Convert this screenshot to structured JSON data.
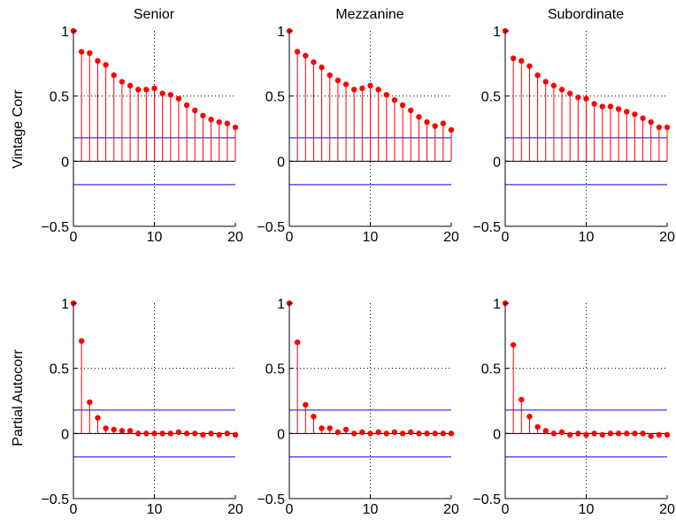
{
  "figure": {
    "column_titles": [
      "Senior",
      "Mezzanine",
      "Subordinate"
    ],
    "row_labels": [
      "Vintage Corr",
      "Partial Autocorr"
    ]
  },
  "colors": {
    "stem": "#ff0000",
    "bound": "#0000ff",
    "axis": "#000000",
    "grid": "#000000"
  },
  "chart_data": [
    {
      "type": "stem",
      "title": "Senior",
      "ylabel": "Vintage Corr",
      "xlim": [
        0,
        20
      ],
      "ylim": [
        -0.5,
        1
      ],
      "xticks": [
        "0",
        "10",
        "20"
      ],
      "yticks": [
        "−0.5",
        "0",
        "0.5",
        "1"
      ],
      "grid": true,
      "confidence_bounds": [
        0.18,
        -0.18
      ],
      "x": [
        0,
        1,
        2,
        3,
        4,
        5,
        6,
        7,
        8,
        9,
        10,
        11,
        12,
        13,
        14,
        15,
        16,
        17,
        18,
        19,
        20
      ],
      "values": [
        1.0,
        0.84,
        0.83,
        0.77,
        0.74,
        0.66,
        0.61,
        0.58,
        0.55,
        0.55,
        0.56,
        0.52,
        0.51,
        0.48,
        0.43,
        0.39,
        0.35,
        0.32,
        0.3,
        0.29,
        0.26
      ]
    },
    {
      "type": "stem",
      "title": "Mezzanine",
      "ylabel": "Vintage Corr",
      "xlim": [
        0,
        20
      ],
      "ylim": [
        -0.5,
        1
      ],
      "xticks": [
        "0",
        "10",
        "20"
      ],
      "yticks": [
        "−0.5",
        "0",
        "0.5",
        "1"
      ],
      "grid": true,
      "confidence_bounds": [
        0.18,
        -0.18
      ],
      "x": [
        0,
        1,
        2,
        3,
        4,
        5,
        6,
        7,
        8,
        9,
        10,
        11,
        12,
        13,
        14,
        15,
        16,
        17,
        18,
        19,
        20
      ],
      "values": [
        1.0,
        0.84,
        0.81,
        0.76,
        0.72,
        0.66,
        0.62,
        0.59,
        0.55,
        0.56,
        0.58,
        0.55,
        0.51,
        0.47,
        0.43,
        0.39,
        0.34,
        0.3,
        0.27,
        0.29,
        0.24
      ]
    },
    {
      "type": "stem",
      "title": "Subordinate",
      "ylabel": "Vintage Corr",
      "xlim": [
        0,
        20
      ],
      "ylim": [
        -0.5,
        1
      ],
      "xticks": [
        "0",
        "10",
        "20"
      ],
      "yticks": [
        "−0.5",
        "0",
        "0.5",
        "1"
      ],
      "grid": true,
      "confidence_bounds": [
        0.18,
        -0.18
      ],
      "x": [
        0,
        1,
        2,
        3,
        4,
        5,
        6,
        7,
        8,
        9,
        10,
        11,
        12,
        13,
        14,
        15,
        16,
        17,
        18,
        19,
        20
      ],
      "values": [
        1.0,
        0.79,
        0.77,
        0.73,
        0.66,
        0.61,
        0.58,
        0.55,
        0.52,
        0.49,
        0.48,
        0.44,
        0.42,
        0.42,
        0.4,
        0.38,
        0.36,
        0.33,
        0.3,
        0.26,
        0.26
      ]
    },
    {
      "type": "stem",
      "title": "",
      "ylabel": "Partial Autocorr",
      "xlim": [
        0,
        20
      ],
      "ylim": [
        -0.5,
        1
      ],
      "xticks": [
        "0",
        "10",
        "20"
      ],
      "yticks": [
        "−0.5",
        "0",
        "0.5",
        "1"
      ],
      "grid": true,
      "confidence_bounds": [
        0.18,
        -0.18
      ],
      "x": [
        0,
        1,
        2,
        3,
        4,
        5,
        6,
        7,
        8,
        9,
        10,
        11,
        12,
        13,
        14,
        15,
        16,
        17,
        18,
        19,
        20
      ],
      "values": [
        1.0,
        0.71,
        0.24,
        0.12,
        0.04,
        0.03,
        0.02,
        0.02,
        0.0,
        0.0,
        0.0,
        0.0,
        0.0,
        0.01,
        0.0,
        0.0,
        -0.01,
        0.0,
        -0.01,
        0.0,
        -0.01
      ]
    },
    {
      "type": "stem",
      "title": "",
      "ylabel": "Partial Autocorr",
      "xlim": [
        0,
        20
      ],
      "ylim": [
        -0.5,
        1
      ],
      "xticks": [
        "0",
        "10",
        "20"
      ],
      "yticks": [
        "−0.5",
        "0",
        "0.5",
        "1"
      ],
      "grid": true,
      "confidence_bounds": [
        0.18,
        -0.18
      ],
      "x": [
        0,
        1,
        2,
        3,
        4,
        5,
        6,
        7,
        8,
        9,
        10,
        11,
        12,
        13,
        14,
        15,
        16,
        17,
        18,
        19,
        20
      ],
      "values": [
        1.0,
        0.7,
        0.22,
        0.13,
        0.04,
        0.04,
        0.01,
        0.03,
        0.0,
        0.01,
        0.0,
        0.01,
        0.0,
        0.01,
        0.0,
        0.01,
        0.0,
        0.0,
        0.0,
        0.0,
        0.0
      ]
    },
    {
      "type": "stem",
      "title": "",
      "ylabel": "Partial Autocorr",
      "xlim": [
        0,
        20
      ],
      "ylim": [
        -0.5,
        1
      ],
      "xticks": [
        "0",
        "10",
        "20"
      ],
      "yticks": [
        "−0.5",
        "0",
        "0.5",
        "1"
      ],
      "grid": true,
      "confidence_bounds": [
        0.18,
        -0.18
      ],
      "x": [
        0,
        1,
        2,
        3,
        4,
        5,
        6,
        7,
        8,
        9,
        10,
        11,
        12,
        13,
        14,
        15,
        16,
        17,
        18,
        19,
        20
      ],
      "values": [
        1.0,
        0.68,
        0.26,
        0.13,
        0.05,
        0.02,
        0.0,
        0.01,
        -0.01,
        0.0,
        -0.01,
        0.0,
        -0.01,
        0.0,
        0.0,
        0.0,
        0.0,
        0.0,
        -0.02,
        -0.01,
        -0.01
      ]
    }
  ]
}
